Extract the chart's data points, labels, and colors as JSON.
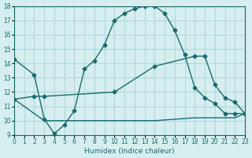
{
  "xlabel": "Humidex (Indice chaleur)",
  "ylabel": "",
  "bg_color": "#d6eef0",
  "grid_color": "#b0d8dc",
  "line_color": "#1a6b6b",
  "xlim": [
    0,
    23
  ],
  "ylim": [
    9,
    18
  ],
  "xticks": [
    0,
    1,
    2,
    3,
    4,
    5,
    6,
    7,
    8,
    9,
    10,
    11,
    12,
    13,
    14,
    15,
    16,
    17,
    18,
    19,
    20,
    21,
    22,
    23
  ],
  "yticks": [
    9,
    10,
    11,
    12,
    13,
    14,
    15,
    16,
    17,
    18
  ],
  "curve1_x": [
    0,
    2,
    3,
    4,
    5,
    6,
    7,
    8,
    9,
    10,
    11,
    12,
    13,
    14,
    15,
    16,
    17,
    18,
    19,
    20,
    21,
    22,
    23
  ],
  "curve1_y": [
    14.3,
    13.2,
    10.1,
    9.1,
    9.7,
    10.7,
    13.6,
    14.2,
    15.3,
    17.0,
    17.5,
    17.8,
    18.0,
    18.0,
    17.5,
    16.3,
    14.6,
    12.3,
    11.6,
    11.2,
    10.5,
    10.5,
    10.5
  ],
  "curve2_x": [
    0,
    2,
    3,
    10,
    14,
    18,
    19,
    20,
    21,
    22,
    23
  ],
  "curve2_y": [
    11.5,
    11.7,
    11.7,
    12.0,
    13.8,
    14.5,
    14.5,
    12.5,
    11.6,
    11.3,
    10.5
  ],
  "curve3_x": [
    0,
    3,
    10,
    14,
    18,
    22,
    23
  ],
  "curve3_y": [
    11.5,
    10.0,
    10.0,
    10.0,
    10.2,
    10.2,
    10.5
  ]
}
